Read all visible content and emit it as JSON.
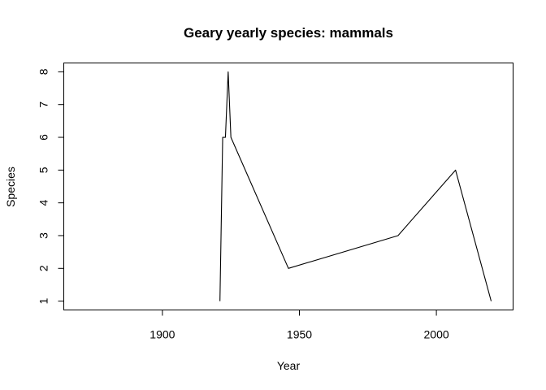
{
  "chart_data": {
    "type": "line",
    "title": "Geary yearly species: mammals",
    "xlabel": "Year",
    "ylabel": "Species",
    "xlim": [
      1864,
      2028
    ],
    "ylim": [
      0.73,
      8.27
    ],
    "x_ticks": [
      1900,
      1950,
      2000
    ],
    "y_ticks": [
      1,
      2,
      3,
      4,
      5,
      6,
      7,
      8
    ],
    "grid": false,
    "legend": "none",
    "series": [
      {
        "color": "#000000",
        "x": [
          1921,
          1922,
          1923,
          1924,
          1925,
          1946,
          1986,
          2007,
          2020
        ],
        "y": [
          1,
          6,
          6,
          8,
          6,
          2,
          3,
          5,
          1
        ]
      }
    ]
  }
}
